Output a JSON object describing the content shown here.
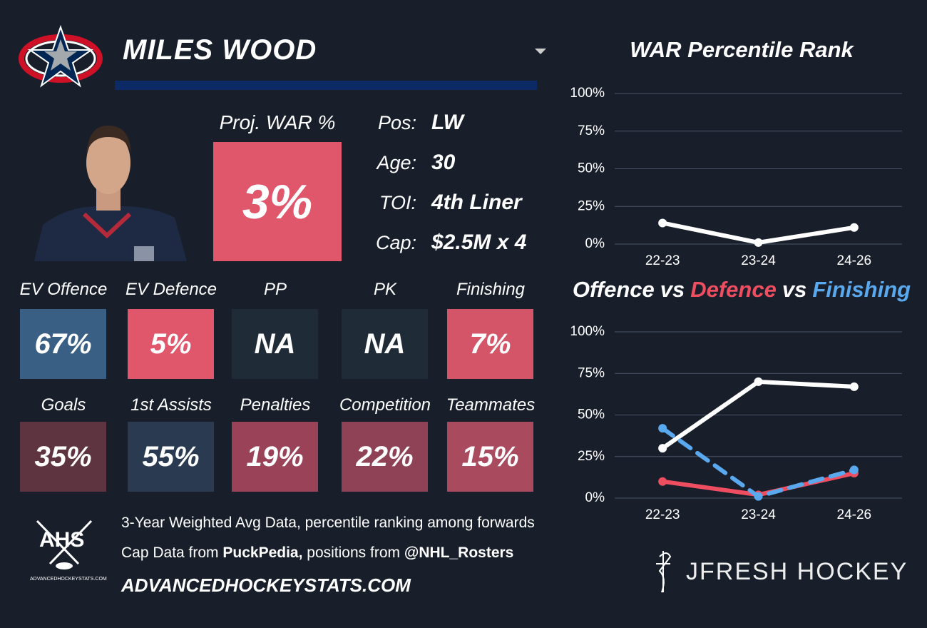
{
  "header": {
    "name": "MILES WOOD",
    "proj_label": "Proj. WAR %",
    "proj_value": "3%",
    "proj_color": "#e0566a"
  },
  "info": [
    {
      "label": "Pos:",
      "value": "LW"
    },
    {
      "label": "Age:",
      "value": "30"
    },
    {
      "label": "TOI:",
      "value": "4th Liner"
    },
    {
      "label": "Cap:",
      "value": "$2.5M x 4"
    }
  ],
  "tiles": [
    [
      {
        "label": "EV Offence",
        "value": "67%",
        "color": "#3a5f85"
      },
      {
        "label": "EV Defence",
        "value": "5%",
        "color": "#e0566a"
      },
      {
        "label": "PP",
        "value": "NA",
        "color": "#202b38"
      },
      {
        "label": "PK",
        "value": "NA",
        "color": "#202b38"
      },
      {
        "label": "Finishing",
        "value": "7%",
        "color": "#d45468"
      }
    ],
    [
      {
        "label": "Goals",
        "value": "35%",
        "color": "#5e3441"
      },
      {
        "label": "1st Assists",
        "value": "55%",
        "color": "#2a3a50"
      },
      {
        "label": "Penalties",
        "value": "19%",
        "color": "#9a4358"
      },
      {
        "label": "Competition",
        "value": "22%",
        "color": "#8f4256"
      },
      {
        "label": "Teammates",
        "value": "15%",
        "color": "#a94a5f"
      }
    ]
  ],
  "footer": {
    "logo": "AHS",
    "logo_small": "ADVANCEDHOCKEYSTATS.COM",
    "line1": "3-Year Weighted Avg Data, percentile ranking among forwards",
    "line2": [
      "Cap Data from ",
      "PuckPedia,",
      " positions from ",
      "@NHL_Rosters"
    ],
    "site": "ADVANCEDHOCKEYSTATS.COM",
    "brand": "JFRESH HOCKEY"
  },
  "chart_data": [
    {
      "type": "line",
      "title": "WAR Percentile Rank",
      "categories": [
        "22-23",
        "23-24",
        "24-26"
      ],
      "series": [
        {
          "name": null,
          "color": "#ffffff",
          "values": [
            14,
            1,
            11
          ]
        }
      ],
      "ylim": [
        0,
        100
      ],
      "yticks": [
        {
          "value": 0,
          "label": "0%"
        },
        {
          "value": 25,
          "label": "25%"
        },
        {
          "value": 50,
          "label": "50%"
        },
        {
          "value": 75,
          "label": "75%"
        },
        {
          "value": 100,
          "label": "100%"
        }
      ],
      "grid": true
    },
    {
      "type": "line",
      "legend_separator": "vs",
      "categories": [
        "22-23",
        "23-24",
        "24-26"
      ],
      "series": [
        {
          "name": "Offence",
          "color": "#ffffff",
          "values": [
            30,
            70,
            67
          ]
        },
        {
          "name": "Defence",
          "color": "#ef4e61",
          "values": [
            10,
            2,
            15
          ]
        },
        {
          "name": "Finishing",
          "color": "#5aa9ee",
          "dash": true,
          "values": [
            42,
            1,
            17
          ]
        }
      ],
      "ylim": [
        0,
        100
      ],
      "yticks": [
        {
          "value": 0,
          "label": "0%"
        },
        {
          "value": 25,
          "label": "25%"
        },
        {
          "value": 50,
          "label": "50%"
        },
        {
          "value": 75,
          "label": "75%"
        },
        {
          "value": 100,
          "label": "100%"
        }
      ],
      "grid": true
    }
  ]
}
